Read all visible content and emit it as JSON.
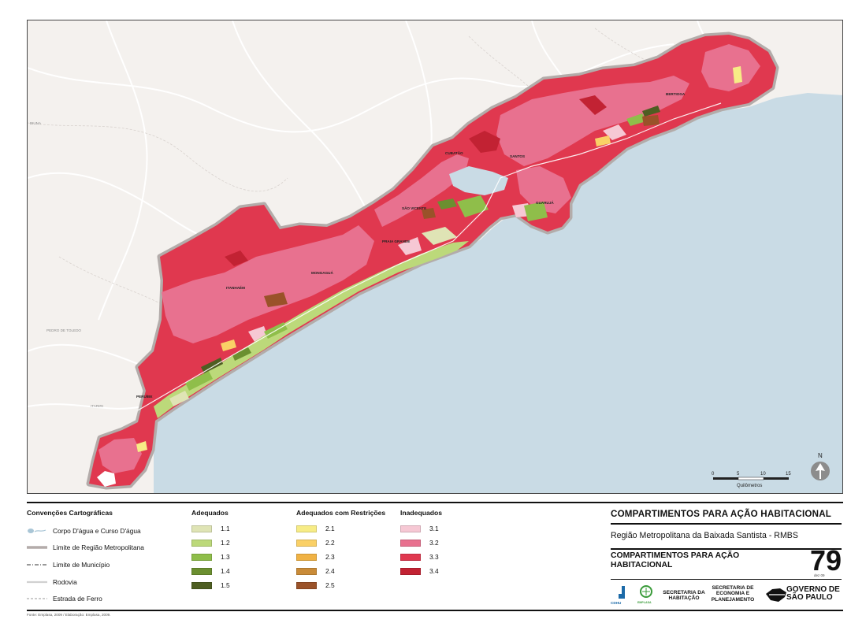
{
  "map": {
    "place_labels": {
      "bertioga": "BERTIOGA",
      "cubatao": "CUBATÃO",
      "santos": "SANTOS",
      "guaruja": "GUARUJÁ",
      "sao_vicente": "SÃO VICENTE",
      "praia_grande": "PRAIA GRANDE",
      "mongagua": "MONGAGUÁ",
      "itanhaem": "ITANHAÉM",
      "peruibe": "PERUÍBE",
      "biuna": "BIUNA",
      "pedro_de_toledo": "PEDRO DE TOLEDO",
      "itariri": "ITARIRI"
    },
    "scale_bar": {
      "ticks": [
        "0",
        "5",
        "10",
        "15"
      ],
      "unit": "Quilômetros"
    },
    "north_arrow": {
      "label": "N",
      "icon": "north-arrow-icon"
    },
    "colors": {
      "land": "#f4f1ee",
      "sea": "#c9dbe5",
      "boundary": "#b0aaa8"
    }
  },
  "legend": {
    "conventions": {
      "title": "Convenções Cartográficas",
      "items": [
        {
          "label": "Corpo D'água e Curso D'água",
          "icon": "water-body-icon"
        },
        {
          "label": "Limite de Região Metropolitana",
          "icon": "metro-boundary-line-icon"
        },
        {
          "label": "Limite de Município",
          "icon": "municipal-boundary-line-icon"
        },
        {
          "label": "Rodovia",
          "icon": "highway-line-icon"
        },
        {
          "label": "Estrada de Ferro",
          "icon": "railway-line-icon"
        }
      ]
    },
    "adequados": {
      "title": "Adequados",
      "items": [
        {
          "label": "1.1",
          "color": "#dfe4b5"
        },
        {
          "label": "1.2",
          "color": "#bcd97a"
        },
        {
          "label": "1.3",
          "color": "#8fbe4a"
        },
        {
          "label": "1.4",
          "color": "#6b8f30"
        },
        {
          "label": "1.5",
          "color": "#4e5e22"
        }
      ]
    },
    "restricoes": {
      "title": "Adequados com Restrições",
      "items": [
        {
          "label": "2.1",
          "color": "#f7ec86"
        },
        {
          "label": "2.2",
          "color": "#fad066"
        },
        {
          "label": "2.3",
          "color": "#f0b244"
        },
        {
          "label": "2.4",
          "color": "#c98b38"
        },
        {
          "label": "2.5",
          "color": "#9a5229"
        }
      ]
    },
    "inadequados": {
      "title": "Inadequados",
      "items": [
        {
          "label": "3.1",
          "color": "#f6c8d4"
        },
        {
          "label": "3.2",
          "color": "#e8718f"
        },
        {
          "label": "3.3",
          "color": "#e0384f"
        },
        {
          "label": "3.4",
          "color": "#c22233"
        }
      ]
    }
  },
  "title_block": {
    "main_title": "COMPARTIMENTOS PARA AÇÃO HABITACIONAL",
    "region": "Região Metropolitana da Baixada Santista - RMBS",
    "map_title": "COMPARTIMENTOS PARA AÇÃO HABITACIONAL",
    "map_number": "79",
    "date": "dez 09",
    "logos": {
      "cdhu": "CDHU",
      "emplasa": "EMPLASA",
      "sec_habitacao": "SECRETARIA DA HABITAÇÃO",
      "sec_economia": "SECRETARIA DE ECONOMIA E PLANEJAMENTO",
      "governo": "GOVERNO DE SÃO PAULO"
    }
  },
  "source_note": "Fonte: Emplasa, 2009 / Elaboração: Emplasa, 2009."
}
